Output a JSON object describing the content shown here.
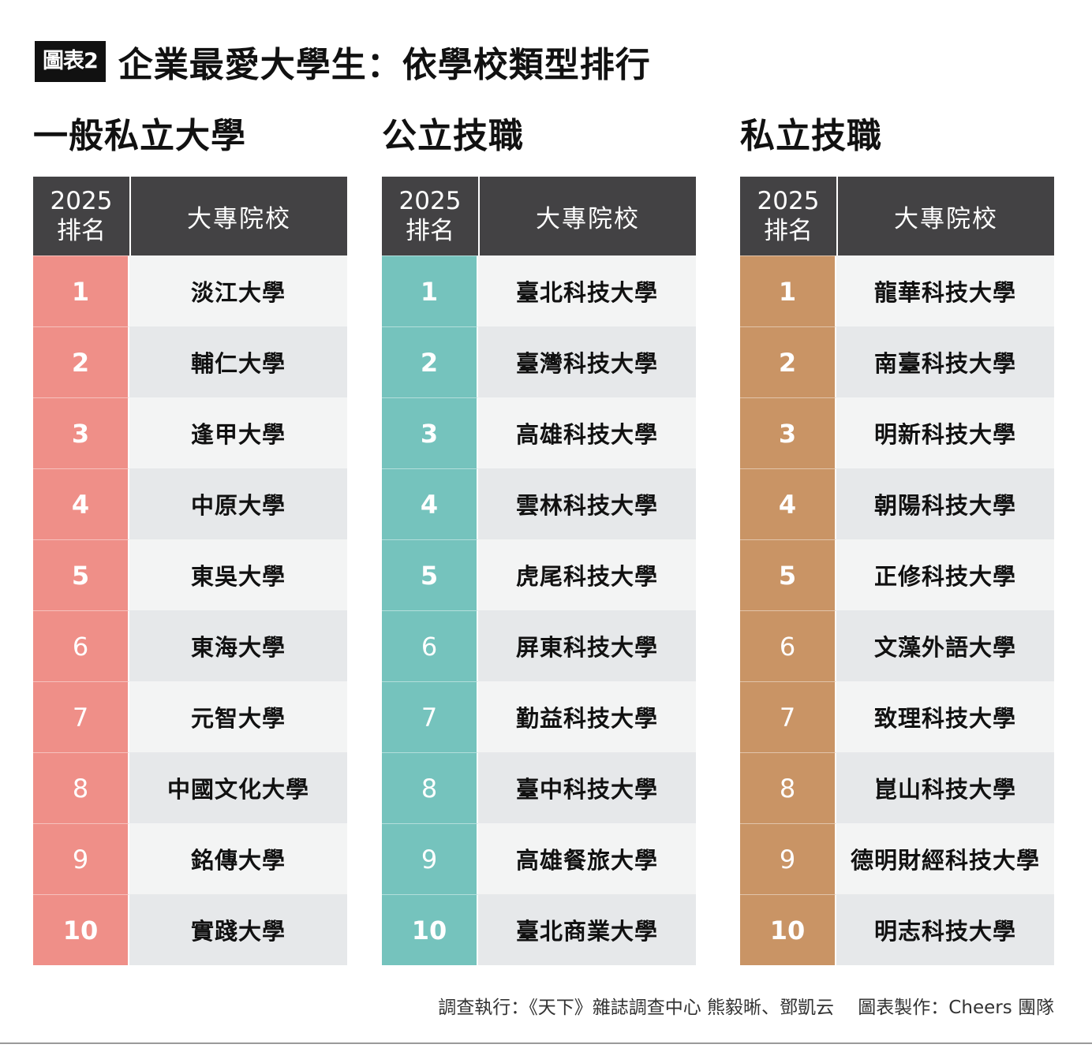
{
  "header": {
    "figure_label": "圖表2",
    "title": "企業最愛大學生：依學校類型排行"
  },
  "table_headers": {
    "rank_line1": "2025",
    "rank_line2": "排名",
    "school": "大專院校"
  },
  "sections": [
    {
      "title": "一般私立大學",
      "color": "#ef8f88",
      "rows": [
        {
          "rank": "1",
          "school": "淡江大學"
        },
        {
          "rank": "2",
          "school": "輔仁大學"
        },
        {
          "rank": "3",
          "school": "逢甲大學"
        },
        {
          "rank": "4",
          "school": "中原大學"
        },
        {
          "rank": "5",
          "school": "東吳大學"
        },
        {
          "rank": "6",
          "school": "東海大學"
        },
        {
          "rank": "7",
          "school": "元智大學"
        },
        {
          "rank": "8",
          "school": "中國文化大學"
        },
        {
          "rank": "9",
          "school": "銘傳大學"
        },
        {
          "rank": "10",
          "school": "實踐大學"
        }
      ]
    },
    {
      "title": "公立技職",
      "color": "#75c3bd",
      "rows": [
        {
          "rank": "1",
          "school": "臺北科技大學"
        },
        {
          "rank": "2",
          "school": "臺灣科技大學"
        },
        {
          "rank": "3",
          "school": "高雄科技大學"
        },
        {
          "rank": "4",
          "school": "雲林科技大學"
        },
        {
          "rank": "5",
          "school": "虎尾科技大學"
        },
        {
          "rank": "6",
          "school": "屏東科技大學"
        },
        {
          "rank": "7",
          "school": "勤益科技大學"
        },
        {
          "rank": "8",
          "school": "臺中科技大學"
        },
        {
          "rank": "9",
          "school": "高雄餐旅大學"
        },
        {
          "rank": "10",
          "school": "臺北商業大學"
        }
      ]
    },
    {
      "title": "私立技職",
      "color": "#c99465",
      "rows": [
        {
          "rank": "1",
          "school": "龍華科技大學"
        },
        {
          "rank": "2",
          "school": "南臺科技大學"
        },
        {
          "rank": "3",
          "school": "明新科技大學"
        },
        {
          "rank": "4",
          "school": "朝陽科技大學"
        },
        {
          "rank": "5",
          "school": "正修科技大學"
        },
        {
          "rank": "6",
          "school": "文藻外語大學"
        },
        {
          "rank": "7",
          "school": "致理科技大學"
        },
        {
          "rank": "8",
          "school": "崑山科技大學"
        },
        {
          "rank": "9",
          "school": "德明財經科技大學"
        },
        {
          "rank": "10",
          "school": "明志科技大學"
        }
      ]
    }
  ],
  "footer": {
    "credit": "調查執行：《天下》雜誌調查中心 熊毅晰、鄧凱云　 圖表製作：Cheers 團隊"
  },
  "colors": {
    "header_bg": "#434244",
    "row_odd": "#e6e8ea",
    "row_even": "#f3f4f4"
  }
}
